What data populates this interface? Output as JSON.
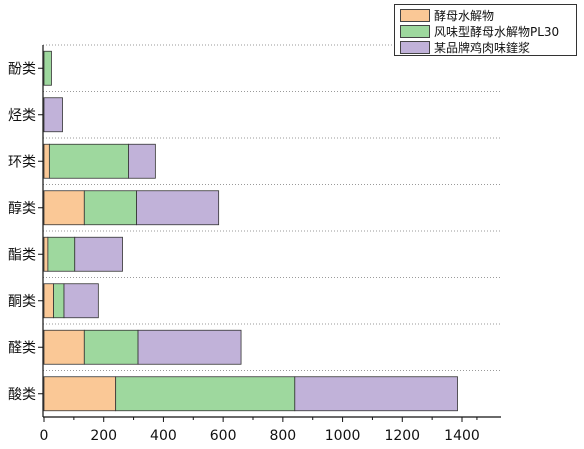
{
  "chart_data": {
    "type": "bar",
    "orientation": "horizontal",
    "stacked": true,
    "categories": [
      "酚类",
      "烃类",
      "环类",
      "醇类",
      "酯类",
      "酮类",
      "醛类",
      "酸类"
    ],
    "series": [
      {
        "name": "酵母水解物",
        "color": "#FAC896",
        "values": [
          0,
          0,
          18,
          135,
          13,
          32,
          135,
          240
        ]
      },
      {
        "name": "风味型酵母水解物PL30",
        "color": "#9ED89E",
        "values": [
          25,
          0,
          265,
          175,
          90,
          35,
          180,
          600
        ]
      },
      {
        "name": "某品牌鸡肉味鍷浆",
        "color": "#C1B2D9",
        "values": [
          0,
          62,
          90,
          275,
          160,
          115,
          345,
          545
        ]
      }
    ],
    "xlim": [
      0,
      1450
    ],
    "xticks": [
      0,
      200,
      400,
      600,
      800,
      1000,
      1200,
      1400
    ],
    "xticklabels": [
      "0",
      "200",
      "400",
      "600",
      "800",
      "1000",
      "1200",
      "1400"
    ],
    "grid": "horizontal-dotted",
    "legend_position": "top-right"
  }
}
